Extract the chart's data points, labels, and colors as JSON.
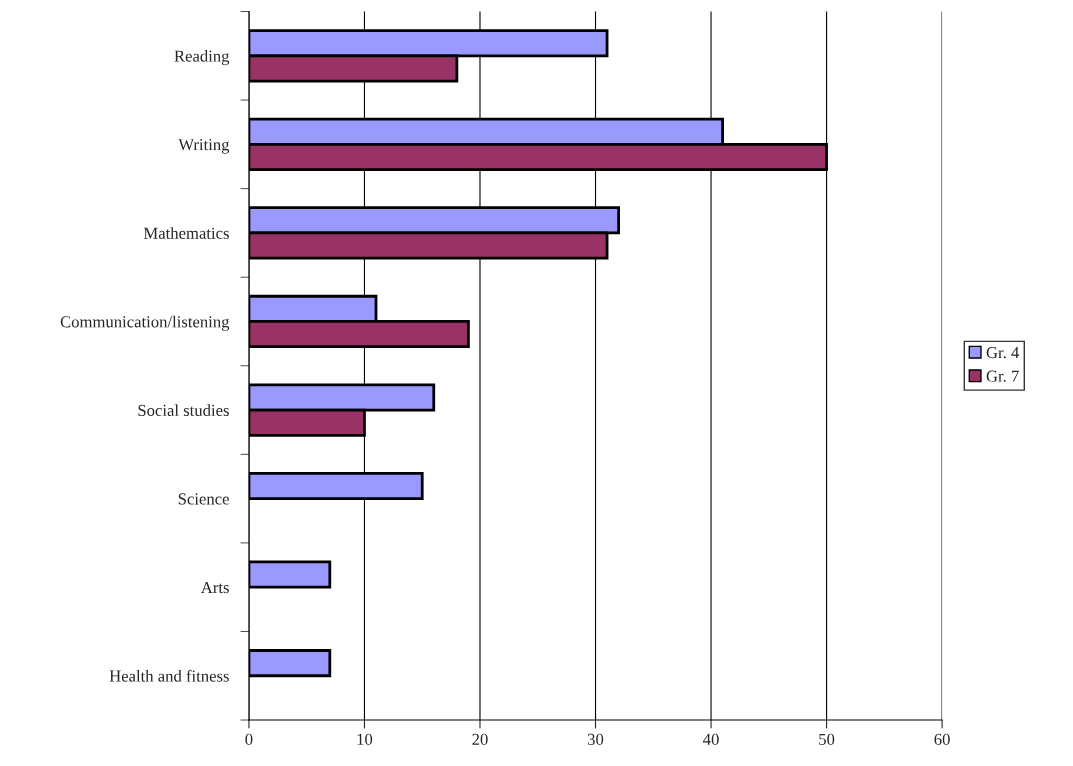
{
  "chart_data": {
    "type": "bar",
    "orientation": "horizontal",
    "categories": [
      "Reading",
      "Writing",
      "Mathematics",
      "Communication/listening",
      "Social studies",
      "Science",
      "Arts",
      "Health and fitness"
    ],
    "series": [
      {
        "name": "Gr. 4",
        "color": "#9999ff",
        "values": [
          31,
          41,
          32,
          11,
          16,
          15,
          7,
          7
        ]
      },
      {
        "name": "Gr. 7",
        "color": "#993366",
        "values": [
          18,
          50,
          31,
          19,
          10,
          null,
          null,
          null
        ]
      }
    ],
    "xlim": [
      0,
      60
    ],
    "xticks": [
      0,
      10,
      20,
      30,
      40,
      50,
      60
    ],
    "grid": "x",
    "legend": "right"
  }
}
